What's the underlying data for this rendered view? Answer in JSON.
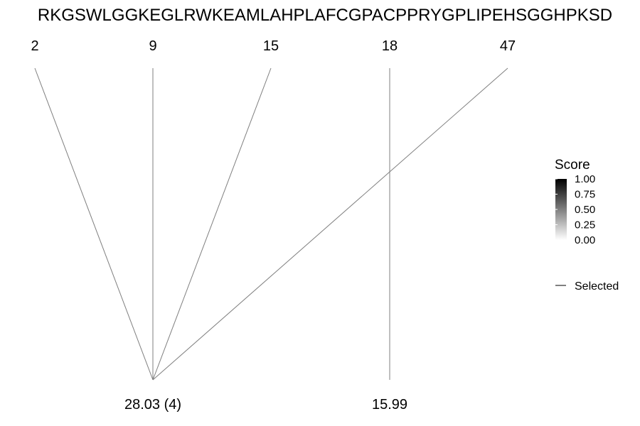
{
  "sequence": "RKGSWLGGKEGLRWKEAMLAHPLAFCGPACPPRYGPLIPEHSGGHPKSD",
  "positions": [
    {
      "label": "2"
    },
    {
      "label": "9"
    },
    {
      "label": "15"
    },
    {
      "label": "18"
    },
    {
      "label": "47"
    }
  ],
  "groups": [
    {
      "label": "28.03 (4)"
    },
    {
      "label": "15.99"
    }
  ],
  "connections": [
    {
      "from": 0,
      "to": 0
    },
    {
      "from": 1,
      "to": 0
    },
    {
      "from": 2,
      "to": 0
    },
    {
      "from": 4,
      "to": 0
    },
    {
      "from": 3,
      "to": 1
    }
  ],
  "legend": {
    "score_title": "Score",
    "score_ticks": [
      "1.00",
      "0.75",
      "0.50",
      "0.25",
      "0.00"
    ],
    "score_high_color": "#000000",
    "score_low_color": "#ffffff",
    "selected_label": "Selected",
    "line_color": "#7f7f7f"
  }
}
